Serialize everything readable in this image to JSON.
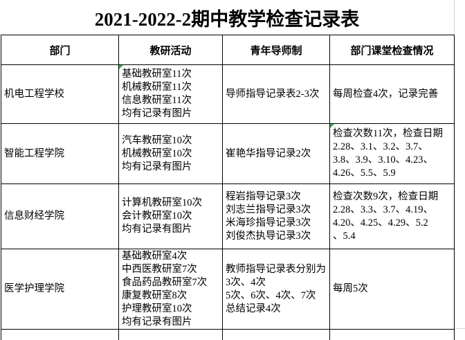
{
  "title": "2021-2022-2期中教学检查记录表",
  "table": {
    "headers": [
      "部门",
      "教研活动",
      "青年导师制",
      "部门课堂检查情况"
    ],
    "rows": [
      {
        "cells": [
          {
            "lines": [
              "机电工程学校"
            ]
          },
          {
            "lines": [
              "基础教研室11次",
              "机械教研室11次",
              "信息教研室11次",
              "均有记录有图片"
            ],
            "flag": true
          },
          {
            "lines": [
              "导师指导记录表2-3次"
            ]
          },
          {
            "lines": [
              "每周检查4次，记录完善"
            ]
          }
        ]
      },
      {
        "cells": [
          {
            "lines": [
              "智能工程学院"
            ]
          },
          {
            "lines": [
              "汽车教研室10次",
              "机械教研室10次",
              "均有记录有图片"
            ]
          },
          {
            "lines": [
              "崔艳华指导记录2次"
            ]
          },
          {
            "lines": [
              "检查次数11次，检查日期",
              "2.28、3.1、3.2、3.7、",
              "3.8、3.9、3.10、4.23、",
              "4.26、5.5、5.9"
            ],
            "flag": true
          }
        ]
      },
      {
        "cells": [
          {
            "lines": [
              "信息财经学院"
            ]
          },
          {
            "lines": [
              "计算机教研室10次",
              "会计教研室10次",
              "均有记录有图片"
            ]
          },
          {
            "lines": [
              "程岩指导记录3次",
              "刘志兰指导记录3次",
              "米海珍指导记录3次",
              "刘俊杰执导记录3次"
            ]
          },
          {
            "lines": [
              "检查次数9次，检查日期",
              "2.28、3.3、3.7、4.19、",
              "4.20、4.25、4.29、5.2",
              "、5.4"
            ]
          }
        ]
      },
      {
        "cells": [
          {
            "lines": [
              "医学护理学院"
            ]
          },
          {
            "lines": [
              "基础教研室4次",
              "中西医教研室7次",
              "食品药品教研室7次",
              "康复教研室8次",
              "护理教研室10次",
              "均有记录有图片"
            ]
          },
          {
            "lines": [
              "教师指导记录表分别为",
              "3次、4次",
              "5次、6次、4次、7次",
              "总结记录4次"
            ]
          },
          {
            "lines": [
              "每周5次"
            ]
          }
        ]
      },
      {
        "cells": [
          {
            "lines": []
          },
          {
            "lines": []
          },
          {
            "lines": []
          },
          {
            "lines": []
          }
        ]
      }
    ]
  },
  "colors": {
    "border": "#000000",
    "text": "#000000",
    "background": "#ffffff",
    "error_flag": "#3aa655",
    "sheet_gridline": "#d4d4d4"
  }
}
